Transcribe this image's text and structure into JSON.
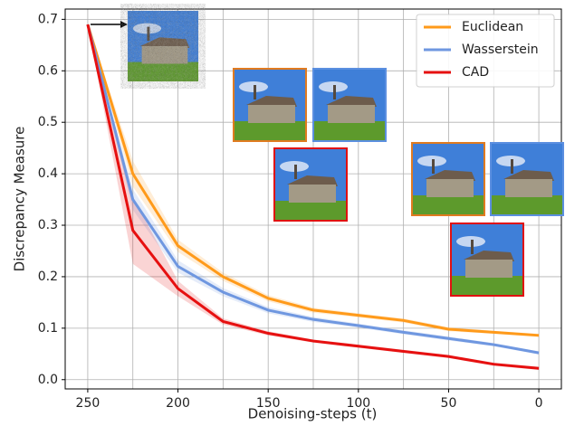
{
  "chart_data": {
    "type": "line",
    "xlabel": "Denoising-steps (t)",
    "ylabel": "Discrepancy Measure",
    "x": [
      250,
      225,
      200,
      175,
      150,
      125,
      100,
      75,
      50,
      25,
      0
    ],
    "series": [
      {
        "name": "Euclidean",
        "color": "#ff9a1a",
        "values": [
          0.69,
          0.4,
          0.26,
          0.2,
          0.158,
          0.135,
          0.125,
          0.115,
          0.098,
          0.092,
          0.086
        ],
        "error": [
          0,
          0.025,
          0.012,
          0.008,
          0.006,
          0.005,
          0.004,
          0.004,
          0.004,
          0.003,
          0.003
        ]
      },
      {
        "name": "Wasserstein",
        "color": "#6f97e0",
        "values": [
          0.69,
          0.35,
          0.22,
          0.17,
          0.135,
          0.117,
          0.105,
          0.092,
          0.08,
          0.068,
          0.052
        ],
        "error": [
          0,
          0.02,
          0.012,
          0.008,
          0.006,
          0.005,
          0.004,
          0.004,
          0.004,
          0.003,
          0.003
        ]
      },
      {
        "name": "CAD",
        "color": "#e61010",
        "values": [
          0.69,
          0.29,
          0.177,
          0.113,
          0.09,
          0.075,
          0.065,
          0.055,
          0.045,
          0.03,
          0.022
        ],
        "error": [
          0,
          0.065,
          0.015,
          0.006,
          0.004,
          0.003,
          0.003,
          0.003,
          0.003,
          0.003,
          0.003
        ]
      }
    ],
    "xlim": [
      262.5,
      -12.5
    ],
    "xticks": [
      250,
      200,
      150,
      100,
      50,
      0
    ],
    "xminor": [
      225,
      175,
      125,
      75,
      25
    ],
    "ylim": [
      -0.018,
      0.72
    ],
    "yticks": [
      {
        "value": 0,
        "label": "0.0"
      },
      0.1,
      0.2,
      0.3,
      0.4,
      0.5,
      0.6,
      0.7
    ],
    "grid": true,
    "legend": "upper right"
  }
}
